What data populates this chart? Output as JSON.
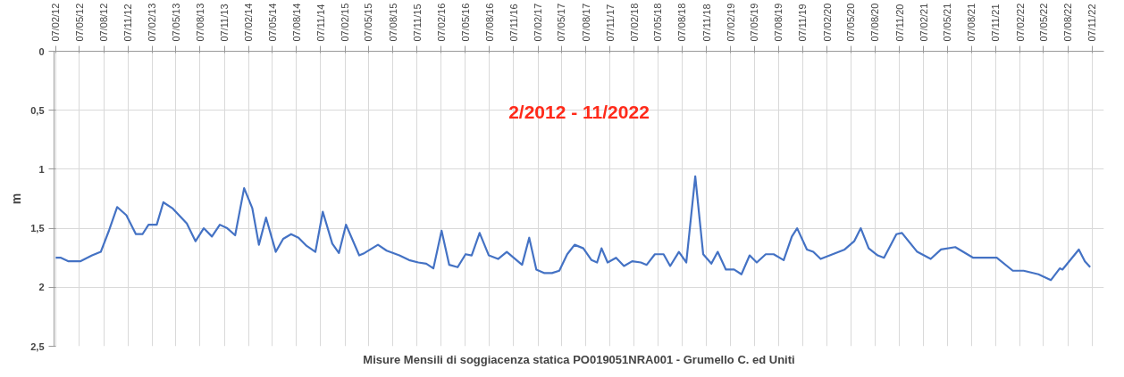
{
  "chart_data": {
    "type": "line",
    "annotations": [
      "2/2012 - 11/2022"
    ],
    "xlabel": "Misure Mensili di soggiacenza statica PO019051NRA001 - Grumello C. ed Uniti",
    "ylabel": "m",
    "xlim": [
      "2012-02-01",
      "2022-12-22"
    ],
    "ylim": [
      2.5,
      0
    ],
    "yticks": [
      0,
      {
        "value": 0.5,
        "label": "0,5"
      },
      1,
      {
        "value": 1.5,
        "label": "1,5"
      },
      2,
      {
        "value": 2.5,
        "label": "2,5"
      }
    ],
    "xticks": [
      {
        "value": "2012-02-07",
        "label": "07/02/12"
      },
      {
        "value": "2012-05-07",
        "label": "07/05/12"
      },
      {
        "value": "2012-08-07",
        "label": "07/08/12"
      },
      {
        "value": "2012-11-07",
        "label": "07/11/12"
      },
      {
        "value": "2013-02-07",
        "label": "07/02/13"
      },
      {
        "value": "2013-05-07",
        "label": "07/05/13"
      },
      {
        "value": "2013-08-07",
        "label": "07/08/13"
      },
      {
        "value": "2013-11-07",
        "label": "07/11/13"
      },
      {
        "value": "2014-02-07",
        "label": "07/02/14"
      },
      {
        "value": "2014-05-07",
        "label": "07/05/14"
      },
      {
        "value": "2014-08-07",
        "label": "07/08/14"
      },
      {
        "value": "2014-11-07",
        "label": "07/11/14"
      },
      {
        "value": "2015-02-07",
        "label": "07/02/15"
      },
      {
        "value": "2015-05-07",
        "label": "07/05/15"
      },
      {
        "value": "2015-08-07",
        "label": "07/08/15"
      },
      {
        "value": "2015-11-07",
        "label": "07/11/15"
      },
      {
        "value": "2016-02-07",
        "label": "07/02/16"
      },
      {
        "value": "2016-05-07",
        "label": "07/05/16"
      },
      {
        "value": "2016-08-07",
        "label": "07/08/16"
      },
      {
        "value": "2016-11-07",
        "label": "07/11/16"
      },
      {
        "value": "2017-02-07",
        "label": "07/02/17"
      },
      {
        "value": "2017-05-07",
        "label": "07/05/17"
      },
      {
        "value": "2017-08-07",
        "label": "07/08/17"
      },
      {
        "value": "2017-11-07",
        "label": "07/11/17"
      },
      {
        "value": "2018-02-07",
        "label": "07/02/18"
      },
      {
        "value": "2018-05-07",
        "label": "07/05/18"
      },
      {
        "value": "2018-08-07",
        "label": "07/08/18"
      },
      {
        "value": "2018-11-07",
        "label": "07/11/18"
      },
      {
        "value": "2019-02-07",
        "label": "07/02/19"
      },
      {
        "value": "2019-05-07",
        "label": "07/05/19"
      },
      {
        "value": "2019-08-07",
        "label": "07/08/19"
      },
      {
        "value": "2019-11-07",
        "label": "07/11/19"
      },
      {
        "value": "2020-02-07",
        "label": "07/02/20"
      },
      {
        "value": "2020-05-07",
        "label": "07/05/20"
      },
      {
        "value": "2020-08-07",
        "label": "07/08/20"
      },
      {
        "value": "2020-11-07",
        "label": "07/11/20"
      },
      {
        "value": "2021-02-07",
        "label": "07/02/21"
      },
      {
        "value": "2021-05-07",
        "label": "07/05/21"
      },
      {
        "value": "2021-08-07",
        "label": "07/08/21"
      },
      {
        "value": "2021-11-07",
        "label": "07/11/21"
      },
      {
        "value": "2022-02-07",
        "label": "07/02/22"
      },
      {
        "value": "2022-05-07",
        "label": "07/05/22"
      },
      {
        "value": "2022-08-07",
        "label": "07/08/22"
      },
      {
        "value": "2022-11-07",
        "label": "07/11/22"
      }
    ],
    "grid": true,
    "marker": "none",
    "line_style": "solid",
    "series": [
      {
        "color": "#4472c4",
        "x": [
          "2012-02-07",
          "2012-02-27",
          "2012-03-27",
          "2012-05-10",
          "2012-06-24",
          "2012-07-27",
          "2012-08-27",
          "2012-09-27",
          "2012-11-01",
          "2012-12-07",
          "2013-01-01",
          "2013-01-24",
          "2013-02-24",
          "2013-03-21",
          "2013-04-24",
          "2013-06-18",
          "2013-07-21",
          "2013-08-21",
          "2013-09-21",
          "2013-10-21",
          "2013-11-18",
          "2013-12-18",
          "2014-01-21",
          "2014-02-21",
          "2014-03-18",
          "2014-04-14",
          "2014-05-21",
          "2014-06-18",
          "2014-07-18",
          "2014-08-15",
          "2014-09-15",
          "2014-10-18",
          "2014-11-15",
          "2014-12-21",
          "2015-01-15",
          "2015-02-11",
          "2015-04-02",
          "2015-04-22",
          "2015-06-12",
          "2015-07-15",
          "2015-09-01",
          "2015-10-08",
          "2015-11-12",
          "2015-12-12",
          "2016-01-08",
          "2016-02-08",
          "2016-03-08",
          "2016-04-09",
          "2016-05-09",
          "2016-06-01",
          "2016-07-01",
          "2016-08-05",
          "2016-09-09",
          "2016-10-12",
          "2016-12-09",
          "2017-01-05",
          "2017-02-01",
          "2017-03-04",
          "2017-04-01",
          "2017-04-29",
          "2017-05-29",
          "2017-06-26",
          "2017-07-29",
          "2017-08-29",
          "2017-09-19",
          "2017-10-06",
          "2017-10-29",
          "2017-11-30",
          "2017-12-30",
          "2018-01-30",
          "2018-03-04",
          "2018-03-26",
          "2018-04-26",
          "2018-05-29",
          "2018-06-23",
          "2018-07-26",
          "2018-08-23",
          "2018-09-26",
          "2018-10-26",
          "2018-11-26",
          "2018-12-20",
          "2019-01-20",
          "2019-02-20",
          "2019-03-20",
          "2019-04-20",
          "2019-05-17",
          "2019-06-20",
          "2019-07-20",
          "2019-08-27",
          "2019-09-27",
          "2019-10-17",
          "2019-11-23",
          "2019-12-17",
          "2020-01-14",
          "2020-04-14",
          "2020-05-20",
          "2020-06-14",
          "2020-07-14",
          "2020-08-17",
          "2020-09-10",
          "2020-10-27",
          "2020-11-17",
          "2021-01-14",
          "2021-03-06",
          "2021-04-14",
          "2021-06-07",
          "2021-08-14",
          "2021-11-11",
          "2022-01-11",
          "2022-02-21",
          "2022-04-18",
          "2022-06-04",
          "2022-07-08",
          "2022-07-18",
          "2022-09-18",
          "2022-10-11",
          "2022-10-31"
        ],
        "values": [
          1.75,
          1.75,
          1.78,
          1.78,
          1.73,
          1.7,
          1.52,
          1.32,
          1.39,
          1.55,
          1.55,
          1.47,
          1.47,
          1.28,
          1.33,
          1.46,
          1.61,
          1.5,
          1.57,
          1.47,
          1.5,
          1.56,
          1.16,
          1.33,
          1.64,
          1.41,
          1.7,
          1.59,
          1.55,
          1.58,
          1.65,
          1.7,
          1.36,
          1.63,
          1.71,
          1.47,
          1.73,
          1.71,
          1.64,
          1.69,
          1.73,
          1.77,
          1.79,
          1.8,
          1.84,
          1.52,
          1.81,
          1.83,
          1.72,
          1.73,
          1.54,
          1.73,
          1.76,
          1.7,
          1.81,
          1.58,
          1.85,
          1.88,
          1.88,
          1.86,
          1.72,
          1.64,
          1.67,
          1.77,
          1.79,
          1.67,
          1.79,
          1.75,
          1.82,
          1.78,
          1.79,
          1.81,
          1.72,
          1.72,
          1.82,
          1.7,
          1.79,
          1.06,
          1.72,
          1.8,
          1.7,
          1.85,
          1.85,
          1.89,
          1.73,
          1.79,
          1.72,
          1.72,
          1.77,
          1.57,
          1.5,
          1.68,
          1.7,
          1.76,
          1.68,
          1.61,
          1.5,
          1.67,
          1.73,
          1.75,
          1.55,
          1.54,
          1.7,
          1.76,
          1.68,
          1.66,
          1.75,
          1.75,
          1.86,
          1.86,
          1.89,
          1.94,
          1.84,
          1.85,
          1.68,
          1.78,
          1.83
        ]
      }
    ]
  }
}
